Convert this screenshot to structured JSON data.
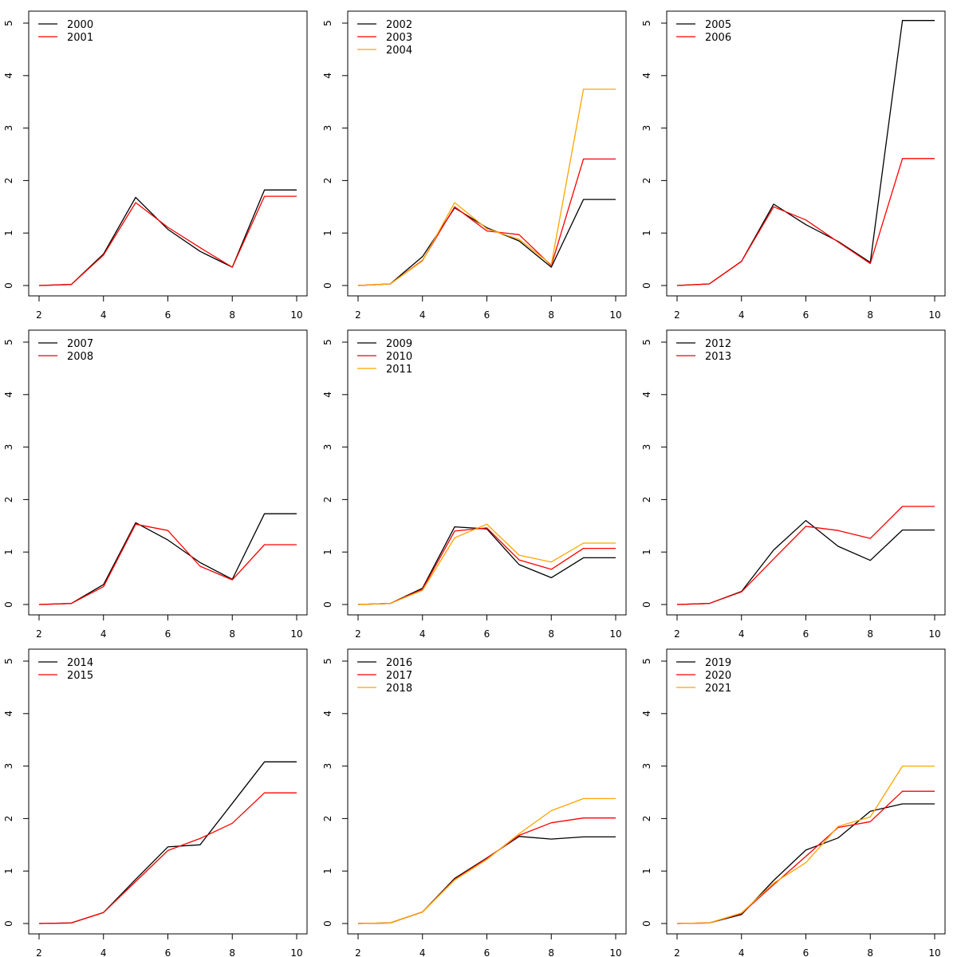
{
  "chart_data": [
    {
      "type": "line",
      "x": [
        2,
        3,
        4,
        5,
        6,
        7,
        8,
        9,
        10
      ],
      "xlim": [
        2,
        10
      ],
      "ylim": [
        0,
        5
      ],
      "xticks": [
        2,
        4,
        6,
        8,
        10
      ],
      "yticks": [
        0,
        1,
        2,
        3,
        4,
        5
      ],
      "legend_position": "top-left",
      "series": [
        {
          "name": "2000",
          "color": "#000000",
          "values": [
            0.0,
            0.02,
            0.6,
            1.68,
            1.07,
            0.65,
            0.35,
            1.82,
            1.82
          ]
        },
        {
          "name": "2001",
          "color": "#ff0000",
          "values": [
            0.0,
            0.02,
            0.58,
            1.58,
            1.11,
            0.72,
            0.35,
            1.7,
            1.7
          ]
        }
      ]
    },
    {
      "type": "line",
      "x": [
        2,
        3,
        4,
        5,
        6,
        7,
        8,
        9,
        10
      ],
      "xlim": [
        2,
        10
      ],
      "ylim": [
        0,
        5
      ],
      "xticks": [
        2,
        4,
        6,
        8,
        10
      ],
      "yticks": [
        0,
        1,
        2,
        3,
        4,
        5
      ],
      "legend_position": "top-left",
      "series": [
        {
          "name": "2002",
          "color": "#000000",
          "values": [
            0.0,
            0.03,
            0.55,
            1.48,
            1.1,
            0.85,
            0.35,
            1.64,
            1.64
          ]
        },
        {
          "name": "2003",
          "color": "#ff0000",
          "values": [
            0.0,
            0.03,
            0.48,
            1.5,
            1.04,
            0.97,
            0.38,
            2.41,
            2.41
          ]
        },
        {
          "name": "2004",
          "color": "#ffa500",
          "values": [
            0.0,
            0.03,
            0.47,
            1.58,
            1.08,
            0.88,
            0.4,
            3.74,
            3.74
          ]
        }
      ]
    },
    {
      "type": "line",
      "x": [
        2,
        3,
        4,
        5,
        6,
        7,
        8,
        9,
        10
      ],
      "xlim": [
        2,
        10
      ],
      "ylim": [
        0,
        5
      ],
      "xticks": [
        2,
        4,
        6,
        8,
        10
      ],
      "yticks": [
        0,
        1,
        2,
        3,
        4,
        5
      ],
      "legend_position": "top-left",
      "series": [
        {
          "name": "2005",
          "color": "#000000",
          "values": [
            0.0,
            0.03,
            0.46,
            1.55,
            1.16,
            0.84,
            0.44,
            5.05,
            5.05
          ]
        },
        {
          "name": "2006",
          "color": "#ff0000",
          "values": [
            0.0,
            0.03,
            0.46,
            1.5,
            1.25,
            0.83,
            0.42,
            2.42,
            2.42
          ]
        }
      ]
    },
    {
      "type": "line",
      "x": [
        2,
        3,
        4,
        5,
        6,
        7,
        8,
        9,
        10
      ],
      "xlim": [
        2,
        10
      ],
      "ylim": [
        0,
        5
      ],
      "xticks": [
        2,
        4,
        6,
        8,
        10
      ],
      "yticks": [
        0,
        1,
        2,
        3,
        4,
        5
      ],
      "legend_position": "top-left",
      "series": [
        {
          "name": "2007",
          "color": "#000000",
          "values": [
            0.0,
            0.02,
            0.38,
            1.56,
            1.23,
            0.8,
            0.48,
            1.73,
            1.73
          ]
        },
        {
          "name": "2008",
          "color": "#ff0000",
          "values": [
            0.0,
            0.02,
            0.34,
            1.53,
            1.41,
            0.73,
            0.47,
            1.14,
            1.14
          ]
        }
      ]
    },
    {
      "type": "line",
      "x": [
        2,
        3,
        4,
        5,
        6,
        7,
        8,
        9,
        10
      ],
      "xlim": [
        2,
        10
      ],
      "ylim": [
        0,
        5
      ],
      "xticks": [
        2,
        4,
        6,
        8,
        10
      ],
      "yticks": [
        0,
        1,
        2,
        3,
        4,
        5
      ],
      "legend_position": "top-left",
      "series": [
        {
          "name": "2009",
          "color": "#000000",
          "values": [
            0.0,
            0.02,
            0.31,
            1.48,
            1.44,
            0.76,
            0.51,
            0.89,
            0.89
          ]
        },
        {
          "name": "2010",
          "color": "#ff0000",
          "values": [
            0.0,
            0.02,
            0.29,
            1.4,
            1.46,
            0.85,
            0.67,
            1.07,
            1.07
          ]
        },
        {
          "name": "2011",
          "color": "#ffa500",
          "values": [
            0.0,
            0.02,
            0.27,
            1.27,
            1.53,
            0.94,
            0.81,
            1.17,
            1.17
          ]
        }
      ]
    },
    {
      "type": "line",
      "x": [
        2,
        3,
        4,
        5,
        6,
        7,
        8,
        9,
        10
      ],
      "xlim": [
        2,
        10
      ],
      "ylim": [
        0,
        5
      ],
      "xticks": [
        2,
        4,
        6,
        8,
        10
      ],
      "yticks": [
        0,
        1,
        2,
        3,
        4,
        5
      ],
      "legend_position": "top-left",
      "series": [
        {
          "name": "2012",
          "color": "#000000",
          "values": [
            0.0,
            0.02,
            0.25,
            1.04,
            1.6,
            1.11,
            0.84,
            1.42,
            1.42
          ]
        },
        {
          "name": "2013",
          "color": "#ff0000",
          "values": [
            0.0,
            0.02,
            0.24,
            0.87,
            1.49,
            1.41,
            1.26,
            1.87,
            1.87
          ]
        }
      ]
    },
    {
      "type": "line",
      "x": [
        2,
        3,
        4,
        5,
        6,
        7,
        8,
        9,
        10
      ],
      "xlim": [
        2,
        10
      ],
      "ylim": [
        0,
        5
      ],
      "xticks": [
        2,
        4,
        6,
        8,
        10
      ],
      "yticks": [
        0,
        1,
        2,
        3,
        4,
        5
      ],
      "legend_position": "top-left",
      "series": [
        {
          "name": "2014",
          "color": "#000000",
          "values": [
            0.0,
            0.01,
            0.21,
            0.84,
            1.46,
            1.5,
            2.29,
            3.08,
            3.08
          ]
        },
        {
          "name": "2015",
          "color": "#ff0000",
          "values": [
            0.0,
            0.01,
            0.21,
            0.8,
            1.39,
            1.62,
            1.91,
            2.49,
            2.49
          ]
        }
      ]
    },
    {
      "type": "line",
      "x": [
        2,
        3,
        4,
        5,
        6,
        7,
        8,
        9,
        10
      ],
      "xlim": [
        2,
        10
      ],
      "ylim": [
        0,
        5
      ],
      "xticks": [
        2,
        4,
        6,
        8,
        10
      ],
      "yticks": [
        0,
        1,
        2,
        3,
        4,
        5
      ],
      "legend_position": "top-left",
      "series": [
        {
          "name": "2016",
          "color": "#000000",
          "values": [
            0.0,
            0.01,
            0.22,
            0.86,
            1.25,
            1.66,
            1.61,
            1.65,
            1.65
          ]
        },
        {
          "name": "2017",
          "color": "#ff0000",
          "values": [
            0.0,
            0.01,
            0.22,
            0.84,
            1.24,
            1.68,
            1.92,
            2.01,
            2.01
          ]
        },
        {
          "name": "2018",
          "color": "#ffa500",
          "values": [
            0.0,
            0.01,
            0.22,
            0.83,
            1.22,
            1.71,
            2.15,
            2.38,
            2.38
          ]
        }
      ]
    },
    {
      "type": "line",
      "x": [
        2,
        3,
        4,
        5,
        6,
        7,
        8,
        9,
        10
      ],
      "xlim": [
        2,
        10
      ],
      "ylim": [
        0,
        5
      ],
      "xticks": [
        2,
        4,
        6,
        8,
        10
      ],
      "yticks": [
        0,
        1,
        2,
        3,
        4,
        5
      ],
      "legend_position": "top-left",
      "series": [
        {
          "name": "2019",
          "color": "#000000",
          "values": [
            0.0,
            0.01,
            0.17,
            0.82,
            1.4,
            1.63,
            2.14,
            2.28,
            2.28
          ]
        },
        {
          "name": "2020",
          "color": "#ff0000",
          "values": [
            0.0,
            0.01,
            0.19,
            0.74,
            1.28,
            1.83,
            1.94,
            2.52,
            2.52
          ]
        },
        {
          "name": "2021",
          "color": "#ffa500",
          "values": [
            0.0,
            0.01,
            0.2,
            0.77,
            1.16,
            1.85,
            2.03,
            3.0,
            3.0
          ]
        }
      ]
    }
  ]
}
